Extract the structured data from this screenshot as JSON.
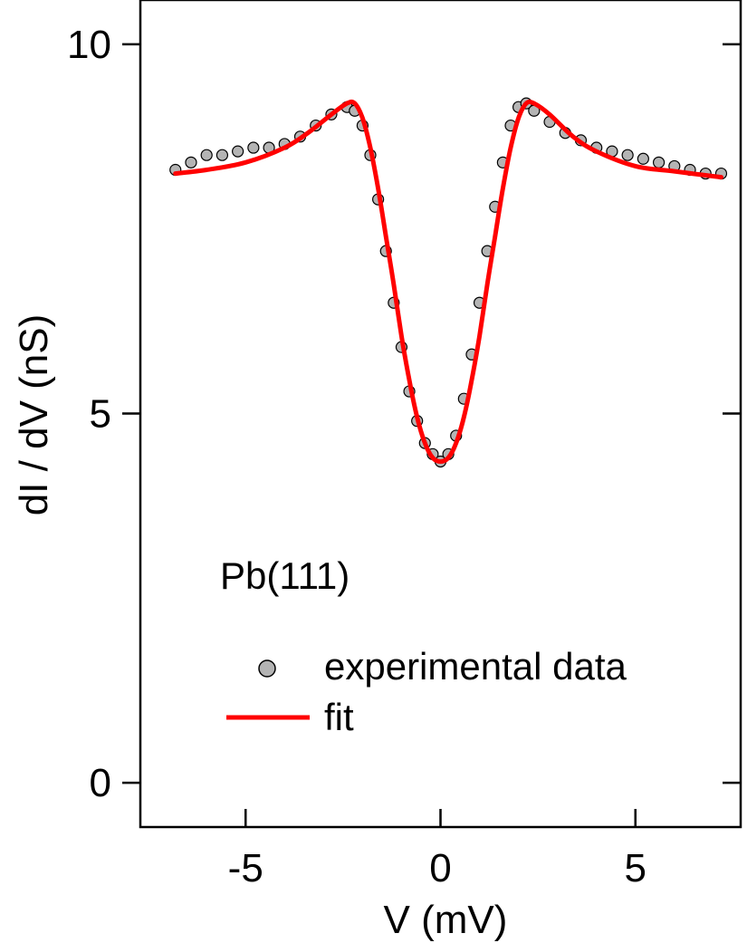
{
  "chart_data": {
    "type": "scatter",
    "title": "",
    "xlabel": "V (mV)",
    "ylabel": "dI / dV (nS)",
    "xlim": [
      -7.7,
      7.7
    ],
    "ylim": [
      -0.6,
      10.6
    ],
    "xticks": [
      -5,
      0,
      5
    ],
    "yticks": [
      0,
      5,
      10
    ],
    "annotation": "Pb(111)",
    "legend": {
      "placement": "lower-center",
      "entries": [
        {
          "label": "experimental data",
          "marker": "circle",
          "color": "#b4b4b4"
        },
        {
          "label": "fit",
          "marker": "line",
          "color": "#ff0000"
        }
      ]
    },
    "series": [
      {
        "name": "experimental data",
        "kind": "points",
        "color": "#b4b4b4",
        "x": [
          -6.8,
          -6.4,
          -6.0,
          -5.6,
          -5.2,
          -4.8,
          -4.4,
          -4.0,
          -3.6,
          -3.2,
          -2.8,
          -2.4,
          -2.2,
          -2.0,
          -1.8,
          -1.6,
          -1.4,
          -1.2,
          -1.0,
          -0.8,
          -0.6,
          -0.4,
          -0.2,
          0.0,
          0.2,
          0.4,
          0.6,
          0.8,
          1.0,
          1.2,
          1.4,
          1.6,
          1.8,
          2.0,
          2.2,
          2.4,
          2.8,
          3.2,
          3.6,
          4.0,
          4.4,
          4.8,
          5.2,
          5.6,
          6.0,
          6.4,
          6.8,
          7.2
        ],
        "y": [
          8.3,
          8.4,
          8.5,
          8.5,
          8.55,
          8.6,
          8.6,
          8.65,
          8.75,
          8.9,
          9.05,
          9.15,
          9.1,
          8.9,
          8.5,
          7.9,
          7.2,
          6.5,
          5.9,
          5.3,
          4.9,
          4.6,
          4.45,
          4.35,
          4.45,
          4.7,
          5.2,
          5.8,
          6.5,
          7.2,
          7.8,
          8.4,
          8.9,
          9.15,
          9.2,
          9.1,
          8.95,
          8.8,
          8.7,
          8.6,
          8.55,
          8.5,
          8.45,
          8.4,
          8.35,
          8.3,
          8.25,
          8.25
        ]
      },
      {
        "name": "fit",
        "kind": "line",
        "color": "#ff0000",
        "x": [
          -6.8,
          -6.0,
          -5.0,
          -4.0,
          -3.4,
          -2.8,
          -2.4,
          -2.2,
          -2.0,
          -1.8,
          -1.6,
          -1.4,
          -1.2,
          -1.0,
          -0.8,
          -0.6,
          -0.4,
          -0.2,
          0.0,
          0.2,
          0.4,
          0.6,
          0.8,
          1.0,
          1.2,
          1.4,
          1.6,
          1.8,
          2.0,
          2.2,
          2.4,
          2.8,
          3.4,
          4.0,
          5.0,
          6.0,
          7.2
        ],
        "y": [
          8.25,
          8.3,
          8.4,
          8.6,
          8.8,
          9.05,
          9.2,
          9.2,
          9.0,
          8.6,
          8.05,
          7.4,
          6.75,
          6.05,
          5.45,
          4.95,
          4.6,
          4.4,
          4.35,
          4.4,
          4.6,
          4.95,
          5.45,
          6.05,
          6.75,
          7.4,
          8.05,
          8.6,
          9.0,
          9.2,
          9.2,
          9.05,
          8.75,
          8.55,
          8.35,
          8.28,
          8.2
        ]
      }
    ]
  }
}
